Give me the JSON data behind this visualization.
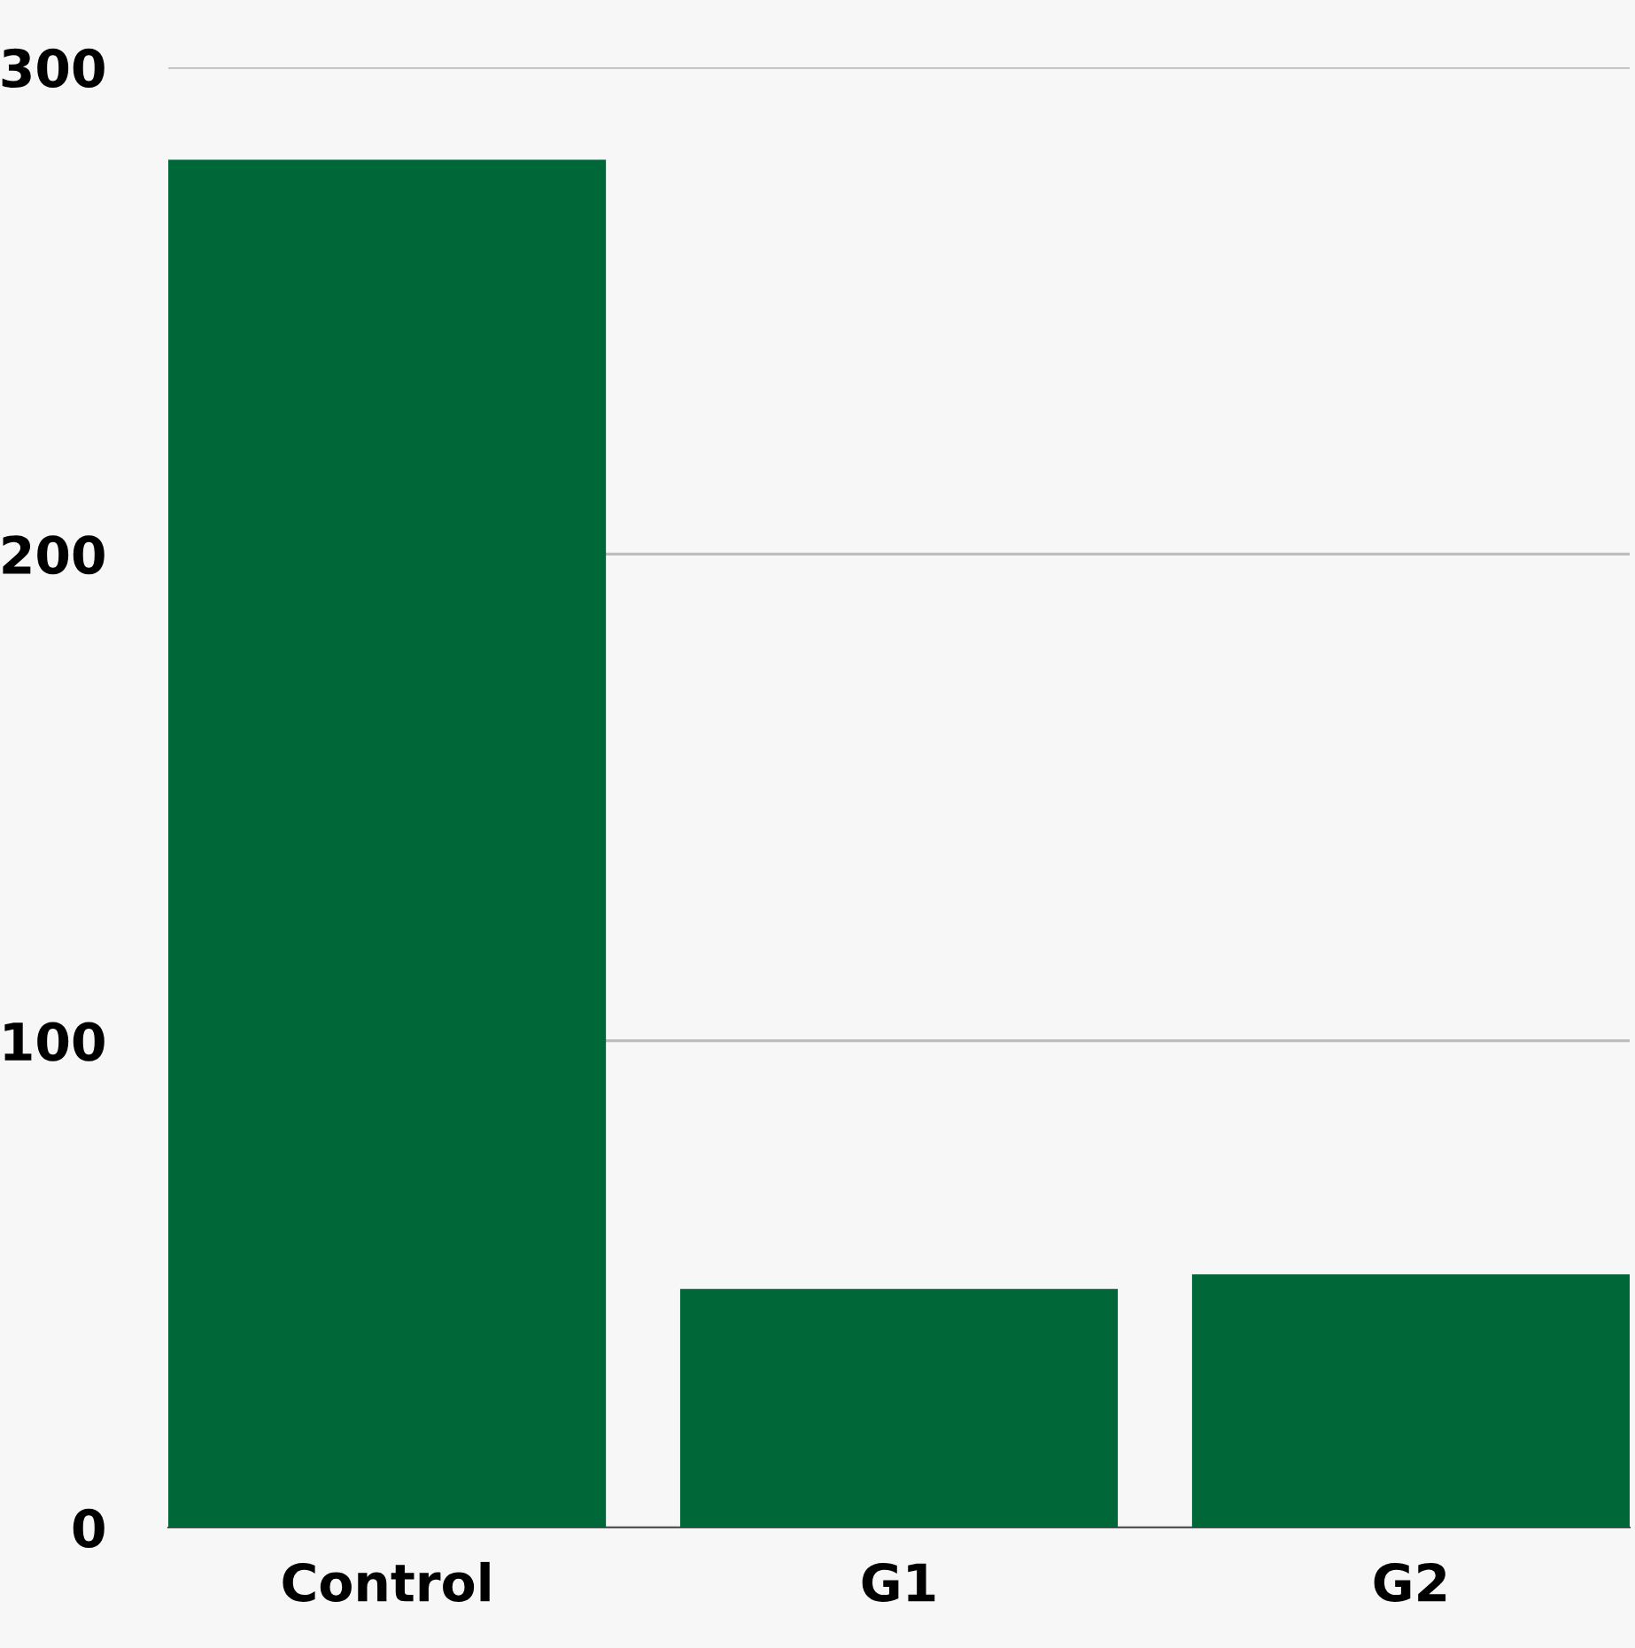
{
  "chart_data": {
    "type": "bar",
    "categories": [
      "Control",
      "G1",
      "G2"
    ],
    "values": [
      281,
      49,
      52
    ],
    "color": "#006838",
    "ylim": [
      0,
      300
    ],
    "yticks": [
      0,
      100,
      200,
      300
    ],
    "grid": "y",
    "legend": false
  }
}
